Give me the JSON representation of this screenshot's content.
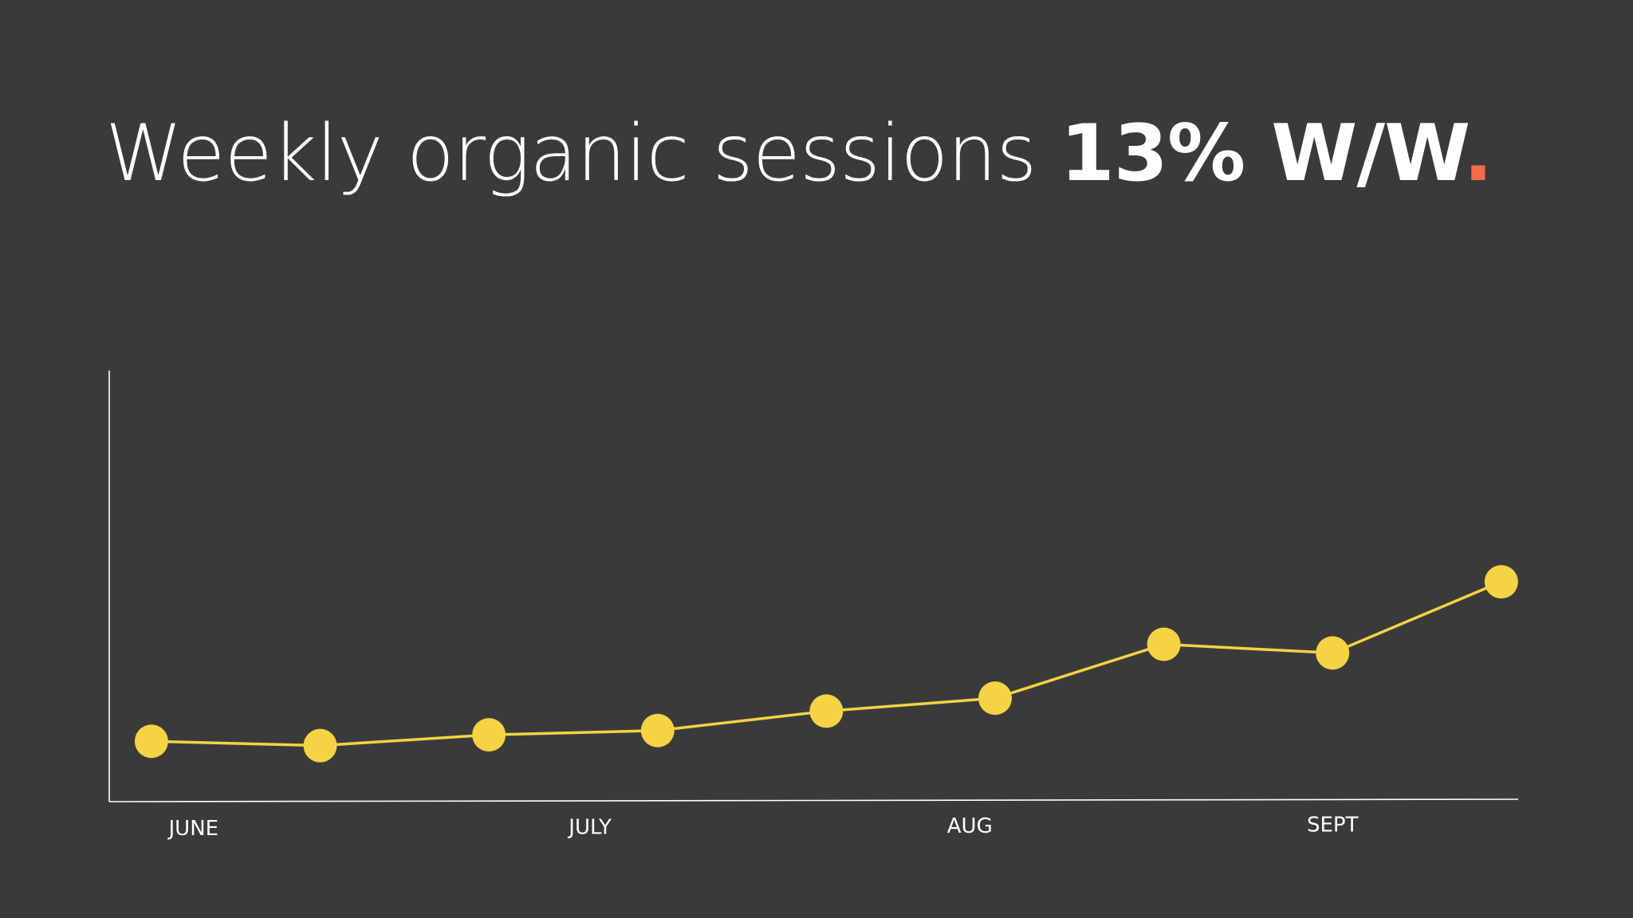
{
  "headline": {
    "text": "Weekly organic sessions",
    "highlight": "13% W/W",
    "terminal": ".",
    "terminal_color": "#f26b4a"
  },
  "colors": {
    "background": "#3b3a3b",
    "axis": "#ffffff",
    "series": "#f5d342"
  },
  "chart_data": {
    "type": "line",
    "title": "Weekly organic sessions 13% W/W.",
    "xlabel": "",
    "ylabel": "",
    "x_tick_labels": [
      "JUNE",
      "JULY",
      "AUG",
      "SEPT"
    ],
    "x_tick_positions": [
      0.25,
      2.6,
      4.85,
      7
    ],
    "x": [
      0,
      1,
      2,
      3,
      4,
      5,
      6,
      7,
      8
    ],
    "xlim": [
      -0.25,
      8.1
    ],
    "ylim": [
      0,
      100
    ],
    "grid": false,
    "legend": "none",
    "series": [
      {
        "values": [
          14,
          13,
          15.5,
          16.5,
          21,
          24,
          36.5,
          34.5,
          51
        ]
      }
    ]
  }
}
